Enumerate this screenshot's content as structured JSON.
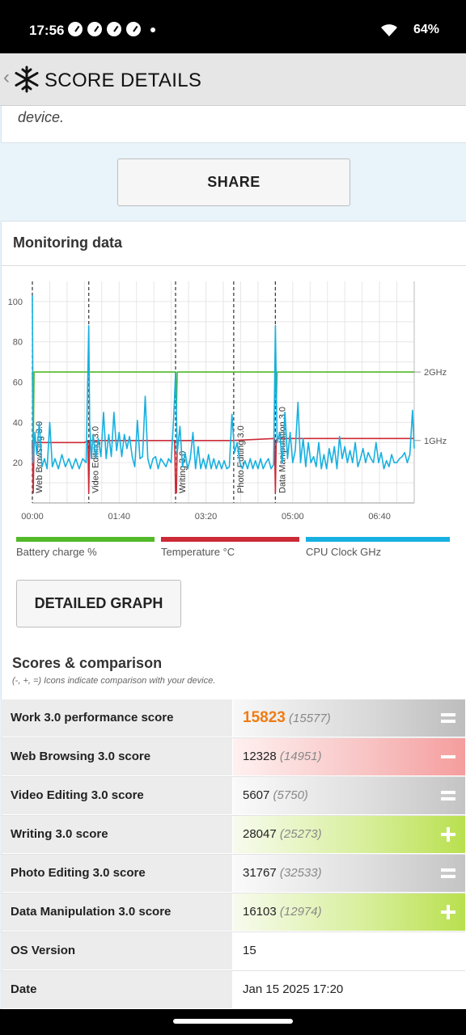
{
  "status": {
    "time": "17:56",
    "battery": "64%"
  },
  "header": {
    "title": "SCORE DETAILS"
  },
  "description": {
    "text": "device."
  },
  "share": {
    "label": "SHARE"
  },
  "monitoring": {
    "title": "Monitoring data"
  },
  "chart_data": {
    "type": "line",
    "title": "",
    "xlabel": "",
    "ylabel": "",
    "x_ticks": [
      "00:00",
      "01:40",
      "03:20",
      "05:00",
      "06:40"
    ],
    "y_ticks": [
      20,
      40,
      60,
      80,
      100
    ],
    "ylim": [
      0,
      110
    ],
    "right_axis_ticks": [
      "2GHz",
      "1GHz"
    ],
    "grid": true,
    "sections": [
      {
        "label": "Web Browsing 3.0",
        "t": 0
      },
      {
        "label": "Video Editing 3.0",
        "t": 65
      },
      {
        "label": "Writing 3.0",
        "t": 165
      },
      {
        "label": "Photo Editing 3.0",
        "t": 232
      },
      {
        "label": "Data Manipulation 3.0",
        "t": 280
      }
    ],
    "series": [
      {
        "name": "Battery charge %",
        "color": "#52b928",
        "x": [
          0,
          1,
          2,
          165,
          166,
          167,
          280,
          281,
          282,
          440
        ],
        "y": [
          65,
          26,
          65,
          65,
          47,
          65,
          65,
          47,
          65,
          65
        ]
      },
      {
        "name": "Temperature °C",
        "color": "#cc2a36",
        "x": [
          0,
          1,
          2,
          60,
          64,
          65,
          66,
          67,
          120,
          164,
          165,
          166,
          167,
          230,
          279,
          280,
          281,
          282,
          350,
          440
        ],
        "y": [
          30,
          5,
          30,
          30,
          31,
          5,
          31,
          31,
          31,
          31,
          5,
          5,
          31,
          31,
          32,
          5,
          31,
          32,
          32,
          32
        ]
      },
      {
        "name": "CPU Clock GHz",
        "color": "#17b0e0",
        "x": [
          0,
          1,
          3,
          5,
          8,
          11,
          14,
          17,
          20,
          23,
          26,
          30,
          34,
          38,
          42,
          46,
          50,
          54,
          58,
          62,
          65,
          66,
          68,
          70,
          73,
          76,
          79,
          82,
          85,
          88,
          91,
          94,
          97,
          100,
          103,
          106,
          109,
          112,
          115,
          118,
          121,
          124,
          127,
          130,
          133,
          136,
          139,
          142,
          145,
          148,
          151,
          154,
          157,
          160,
          163,
          165,
          167,
          170,
          173,
          176,
          179,
          182,
          185,
          188,
          191,
          194,
          197,
          200,
          203,
          206,
          209,
          212,
          215,
          218,
          221,
          224,
          227,
          230,
          233,
          236,
          239,
          242,
          245,
          248,
          251,
          254,
          257,
          260,
          263,
          266,
          269,
          272,
          275,
          278,
          280,
          282,
          285,
          288,
          291,
          294,
          297,
          300,
          303,
          306,
          309,
          312,
          315,
          318,
          321,
          324,
          327,
          330,
          333,
          336,
          339,
          342,
          345,
          348,
          351,
          354,
          357,
          360,
          363,
          366,
          369,
          372,
          375,
          378,
          381,
          384,
          387,
          390,
          393,
          396,
          399,
          402,
          405,
          408,
          411,
          414,
          417,
          420,
          423,
          426,
          429,
          432,
          435,
          438,
          440
        ],
        "y": [
          103,
          20,
          35,
          24,
          40,
          18,
          22,
          17,
          40,
          18,
          22,
          17,
          24,
          18,
          22,
          17,
          22,
          17,
          22,
          20,
          88,
          40,
          22,
          34,
          22,
          32,
          23,
          45,
          22,
          34,
          23,
          45,
          26,
          35,
          23,
          34,
          27,
          33,
          23,
          18,
          41,
          22,
          23,
          53,
          22,
          17,
          22,
          23,
          17,
          22,
          20,
          18,
          22,
          20,
          44,
          65,
          25,
          38,
          18,
          25,
          17,
          22,
          35,
          17,
          28,
          17,
          22,
          17,
          24,
          17,
          22,
          17,
          21,
          17,
          21,
          17,
          18,
          44,
          25,
          30,
          20,
          17,
          21,
          17,
          22,
          17,
          21,
          17,
          22,
          17,
          20,
          22,
          17,
          19,
          88,
          30,
          35,
          20,
          45,
          22,
          35,
          20,
          26,
          50,
          20,
          32,
          18,
          30,
          20,
          23,
          18,
          30,
          17,
          24,
          17,
          27,
          20,
          28,
          17,
          33,
          22,
          28,
          20,
          26,
          20,
          30,
          18,
          22,
          27,
          20,
          25,
          22,
          20,
          30,
          20,
          25,
          17,
          21,
          18,
          24,
          20,
          20,
          22,
          23,
          25,
          20,
          24,
          46,
          27
        ]
      }
    ],
    "legend": [
      {
        "label": "Battery charge %",
        "color": "#52b928"
      },
      {
        "label": "Temperature °C",
        "color": "#cc2a36"
      },
      {
        "label": "CPU Clock GHz",
        "color": "#17b0e0"
      }
    ]
  },
  "detailed_graph": {
    "label": "DETAILED GRAPH"
  },
  "scores": {
    "title": "Scores & comparison",
    "subtitle": "(-, +, =) Icons indicate comparison with your device.",
    "rows": [
      {
        "label": "Work 3.0 performance score",
        "value": "15823",
        "ref": "(15577)",
        "cmp": "equal"
      },
      {
        "label": "Web Browsing 3.0 score",
        "value": "12328",
        "ref": "(14951)",
        "cmp": "minus"
      },
      {
        "label": "Video Editing 3.0 score",
        "value": "5607",
        "ref": "(5750)",
        "cmp": "equal"
      },
      {
        "label": "Writing 3.0 score",
        "value": "28047",
        "ref": "(25273)",
        "cmp": "plus"
      },
      {
        "label": "Photo Editing 3.0 score",
        "value": "31767",
        "ref": "(32533)",
        "cmp": "equal"
      },
      {
        "label": "Data Manipulation 3.0 score",
        "value": "16103",
        "ref": "(12974)",
        "cmp": "plus"
      },
      {
        "label": "OS Version",
        "value": "15",
        "ref": "",
        "cmp": "none"
      },
      {
        "label": "Date",
        "value": "Jan 15 2025 17:20",
        "ref": "",
        "cmp": "none"
      }
    ]
  }
}
